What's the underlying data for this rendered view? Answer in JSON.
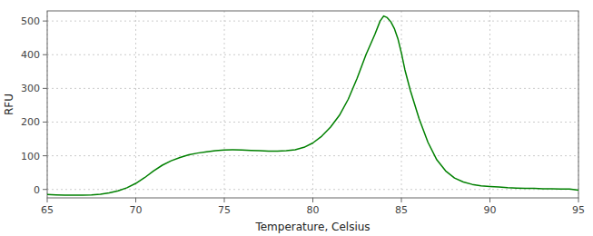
{
  "chart_data": {
    "type": "line",
    "xlabel": "Temperature, Celsius",
    "ylabel": "RFU",
    "x": [
      65.0,
      65.5,
      66.0,
      66.5,
      67.0,
      67.5,
      68.0,
      68.5,
      69.0,
      69.5,
      70.0,
      70.5,
      71.0,
      71.5,
      72.0,
      72.5,
      73.0,
      73.5,
      74.0,
      74.5,
      75.0,
      75.5,
      76.0,
      76.5,
      77.0,
      77.5,
      78.0,
      78.5,
      79.0,
      79.5,
      80.0,
      80.5,
      81.0,
      81.5,
      82.0,
      82.5,
      83.0,
      83.5,
      83.8,
      84.0,
      84.2,
      84.4,
      84.6,
      84.8,
      85.0,
      85.2,
      85.5,
      86.0,
      86.5,
      87.0,
      87.5,
      88.0,
      88.5,
      89.0,
      89.5,
      90.0,
      90.5,
      91.0,
      91.5,
      92.0,
      92.5,
      93.0,
      93.5,
      94.0,
      94.5,
      95.0
    ],
    "values": [
      -15,
      -16,
      -17,
      -17,
      -17,
      -16,
      -14,
      -10,
      -4,
      5,
      18,
      35,
      55,
      72,
      85,
      95,
      103,
      108,
      112,
      115,
      117,
      118,
      117,
      116,
      115,
      114,
      114,
      115,
      118,
      125,
      138,
      158,
      185,
      220,
      268,
      330,
      400,
      460,
      500,
      515,
      510,
      498,
      478,
      448,
      405,
      355,
      295,
      210,
      140,
      88,
      55,
      34,
      22,
      15,
      11,
      9,
      7,
      5,
      4,
      3,
      3,
      2,
      2,
      1,
      1,
      -2
    ],
    "color": "#008000",
    "xlim": [
      65,
      95
    ],
    "ylim": [
      -25,
      530
    ],
    "xticks": [
      65,
      70,
      75,
      80,
      85,
      90,
      95
    ],
    "yticks": [
      0,
      100,
      200,
      300,
      400,
      500
    ],
    "grid": true
  }
}
